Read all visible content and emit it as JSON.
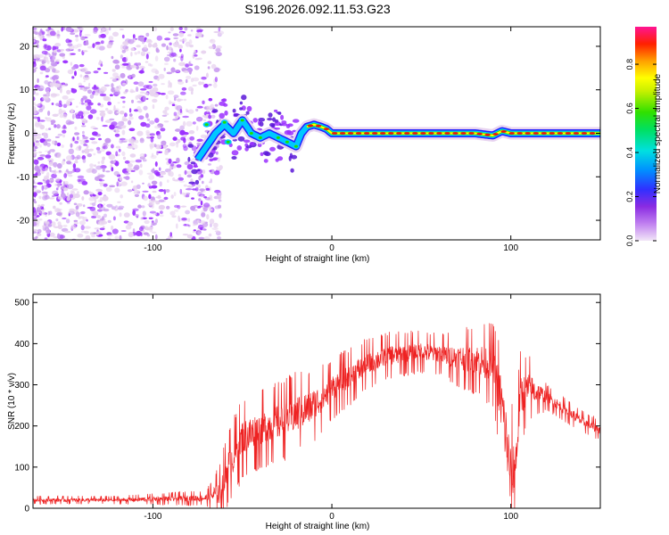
{
  "figure_title": "S196.2026.092.11.53.G23",
  "chart_data": [
    {
      "type": "heatmap",
      "xlabel": "Height of straight line (km)",
      "ylabel": "Frequency (Hz)",
      "xlim": [
        -167,
        150
      ],
      "ylim": [
        -24.5,
        24.5
      ],
      "xticks": [
        -100,
        0,
        100
      ],
      "yticks": [
        -20,
        -10,
        0,
        10,
        20
      ],
      "trace": {
        "x": [
          -75,
          -70,
          -65,
          -60,
          -55,
          -50,
          -45,
          -40,
          -35,
          -30,
          -25,
          -20,
          -17,
          -14,
          -10,
          -6,
          -3,
          0,
          10,
          50,
          80,
          90,
          95,
          100,
          110,
          150
        ],
        "y": [
          -6,
          -3,
          0,
          2,
          0,
          3,
          0,
          -1,
          0,
          -1,
          -2,
          -3,
          0,
          1.5,
          2,
          1.5,
          1,
          0,
          0,
          0,
          0,
          -0.5,
          0.5,
          0,
          0,
          0
        ]
      },
      "colorbar": {
        "label": "Normalized spectral amplitude",
        "ticks": [
          0.0,
          0.2,
          0.4,
          0.6,
          0.8
        ],
        "tick_labels": [
          "0.0",
          "0.2",
          "0.4",
          "0.6",
          "0.8"
        ],
        "range": [
          0,
          0.97
        ],
        "colors": [
          "#e8d4f0",
          "#9b30ff",
          "#2020ff",
          "#00c8ff",
          "#00e080",
          "#20e000",
          "#ffff00",
          "#ff8000",
          "#ff0000",
          "#ff1493"
        ]
      }
    },
    {
      "type": "line",
      "xlabel": "Height of straight line (km)",
      "ylabel": "SNR (10 * v/v)",
      "xlim": [
        -167,
        150
      ],
      "ylim": [
        0,
        520
      ],
      "xticks": [
        -100,
        0,
        100
      ],
      "yticks": [
        0,
        100,
        200,
        300,
        400,
        500
      ],
      "color": "#ee2222",
      "series": {
        "x": [
          -167,
          -120,
          -70,
          -62,
          -58,
          -50,
          -40,
          -30,
          -20,
          -10,
          0,
          10,
          20,
          30,
          40,
          50,
          60,
          70,
          80,
          90,
          95,
          98,
          100,
          103,
          105,
          110,
          120,
          130,
          140,
          150
        ],
        "y": [
          20,
          20,
          25,
          40,
          100,
          170,
          190,
          210,
          230,
          250,
          290,
          320,
          350,
          370,
          375,
          380,
          375,
          365,
          360,
          350,
          250,
          150,
          60,
          120,
          270,
          290,
          270,
          240,
          210,
          190
        ]
      },
      "noise_amplitude": {
        "x": [
          -167,
          -120,
          -70,
          -60,
          -50,
          -40,
          -20,
          0,
          30,
          60,
          90,
          95,
          100,
          105,
          120,
          150
        ],
        "a": [
          8,
          8,
          15,
          70,
          80,
          75,
          80,
          60,
          45,
          40,
          80,
          120,
          150,
          90,
          25,
          20
        ]
      }
    }
  ]
}
